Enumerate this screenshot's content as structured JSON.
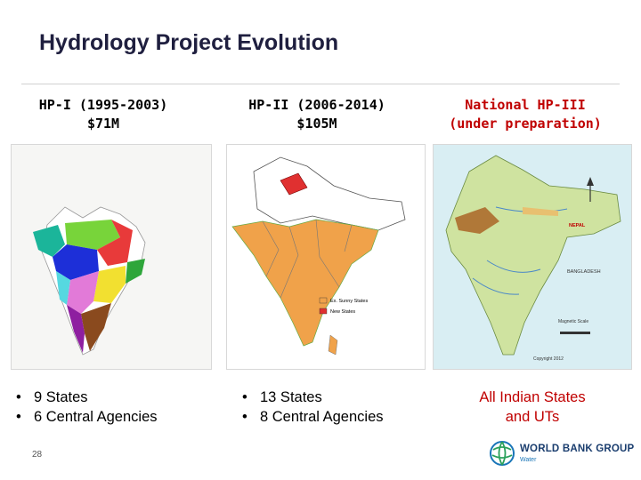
{
  "title": "Hydrology Project Evolution",
  "columns": [
    {
      "heading_line1": "HP-I (1995-2003)",
      "heading_line2": "$71M",
      "heading_color": "#000000",
      "bullets": [
        "9 States",
        "6 Central Agencies"
      ]
    },
    {
      "heading_line1": "HP-II (2006-2014)",
      "heading_line2": "$105M",
      "heading_color": "#000000",
      "bullets": [
        "13 States",
        "8 Central Agencies"
      ],
      "map_legend": [
        "Ex. Sunny States",
        "New States"
      ]
    },
    {
      "heading_line1": "National HP-III",
      "heading_line2": "(under preparation)",
      "heading_color": "#c00000",
      "note_line1": "All Indian States",
      "note_line2": "and UTs",
      "note_color": "#c00000",
      "map_labels": [
        "NEPAL",
        "BANGLADESH",
        "Magnetic Scale",
        "Copyright 2012"
      ]
    }
  ],
  "page_number": "28",
  "logo": {
    "name": "WORLD BANK GROUP",
    "sub": "Water",
    "icon": "globe-icon"
  },
  "colors": {
    "title": "#1f1f3f",
    "accent_red": "#c00000",
    "wbg_blue": "#1a3d6e"
  }
}
